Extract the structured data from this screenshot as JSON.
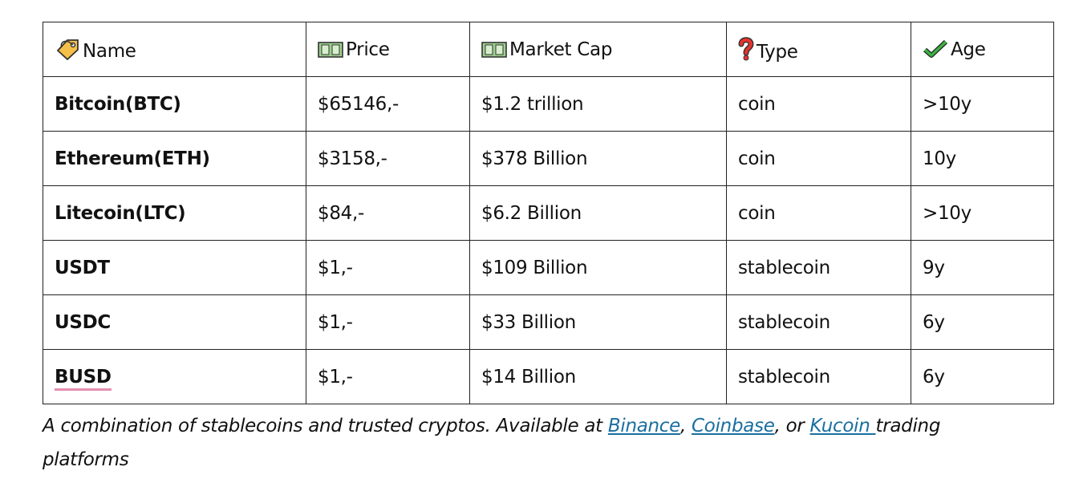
{
  "table": {
    "header": [
      "Name",
      "Price",
      "Market Cap",
      "Type",
      "Age"
    ],
    "rows": [
      [
        "Bitcoin(BTC)",
        "$65146,-",
        "$1.2 trillion",
        "coin",
        ">10y"
      ],
      [
        "Ethereum(ETH)",
        "$3158,-",
        "$378 Billion",
        "coin",
        "10y"
      ],
      [
        "Litecoin(LTC)",
        "$84,-",
        "$6.2 Billion",
        "coin",
        ">10y"
      ],
      [
        "USDT",
        "$1,-",
        "$109 Billion",
        "stablecoin",
        "9y"
      ],
      [
        "USDC",
        "$1,-",
        "$33 Billion",
        "stablecoin",
        "6y"
      ],
      [
        "BUSD",
        "$1,-",
        "$14 Billion",
        "stablecoin",
        "6y"
      ]
    ]
  },
  "caption": {
    "parts": [
      "A combination of stablecoins and trusted cryptos. Available at ",
      "Binance",
      ", ",
      "Coinbase",
      ", or ",
      "Kucoin ",
      "trading platforms"
    ]
  }
}
